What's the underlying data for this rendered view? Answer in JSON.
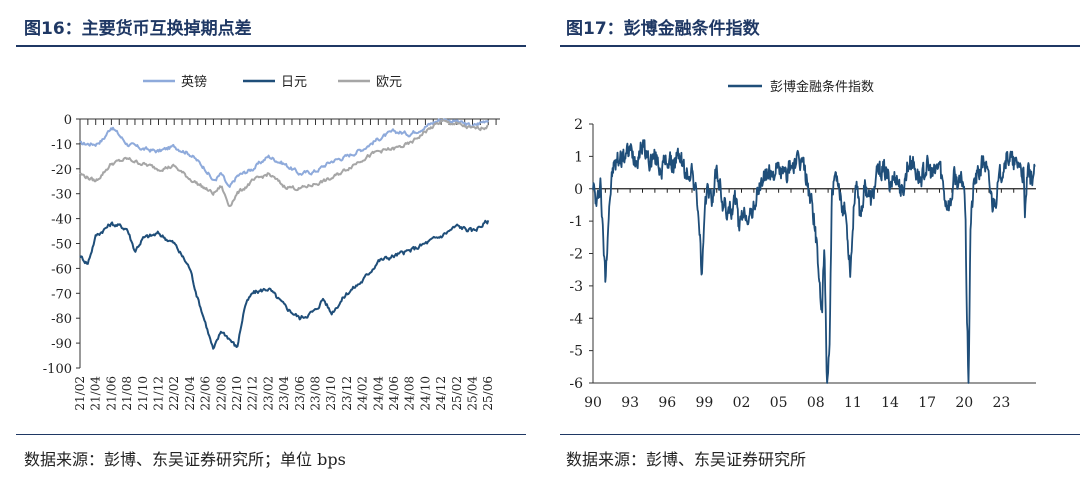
{
  "left": {
    "title": "图16：主要货币互换掉期点差",
    "source": "数据来源：彭博、东吴证券研究所；单位 bps"
  },
  "right": {
    "title": "图17：彭博金融条件指数",
    "source": "数据来源：彭博、东吴证券研究所"
  },
  "chart_data": [
    {
      "type": "line",
      "title": "",
      "xlabel": "",
      "ylabel": "",
      "ylim": [
        -100,
        0
      ],
      "yticks": [
        0,
        -10,
        -20,
        -30,
        -40,
        -50,
        -60,
        -70,
        -80,
        -90,
        -100
      ],
      "ytick_labels": [
        "0",
        "-10",
        "-20",
        "-30",
        "-40",
        "-50",
        "-60",
        "-70",
        "-80",
        "-90",
        "-100"
      ],
      "xticks": [
        "21/02",
        "21/04",
        "21/06",
        "21/08",
        "21/10",
        "21/12",
        "22/02",
        "22/04",
        "22/06",
        "22/08",
        "22/10",
        "22/12",
        "23/02",
        "23/04",
        "23/06",
        "23/08",
        "23/10",
        "23/12",
        "24/02",
        "24/04",
        "24/06",
        "24/08",
        "24/10",
        "24/12",
        "25/02",
        "25/04",
        "25/06"
      ],
      "legend_position": "top-center",
      "grid": false,
      "series": [
        {
          "name": "英镑",
          "color": "#8eaadb",
          "x": [
            "21/02",
            "21/04",
            "21/05",
            "21/06",
            "21/08",
            "21/10",
            "21/12",
            "22/02",
            "22/04",
            "22/06",
            "22/07",
            "22/08",
            "22/09",
            "22/10",
            "22/12",
            "23/02",
            "23/04",
            "23/06",
            "23/08",
            "23/10",
            "23/12",
            "24/02",
            "24/04",
            "24/06",
            "24/08",
            "24/10",
            "24/12",
            "25/02",
            "25/04",
            "25/06"
          ],
          "values": [
            -10,
            -10,
            -8,
            -3,
            -10,
            -12,
            -13,
            -11,
            -14,
            -20,
            -25,
            -22,
            -28,
            -23,
            -20,
            -15,
            -18,
            -22,
            -21,
            -17,
            -15,
            -12,
            -8,
            -5,
            -6,
            -3,
            0,
            -1,
            -3,
            0
          ]
        },
        {
          "name": "日元",
          "color": "#1f4e79",
          "x": [
            "21/02",
            "21/03",
            "21/04",
            "21/06",
            "21/08",
            "21/09",
            "21/10",
            "21/12",
            "22/02",
            "22/03",
            "22/04",
            "22/05",
            "22/06",
            "22/07",
            "22/08",
            "22/09",
            "22/10",
            "22/11",
            "22/12",
            "23/02",
            "23/04",
            "23/06",
            "23/08",
            "23/09",
            "23/10",
            "23/12",
            "24/02",
            "24/04",
            "24/06",
            "24/08",
            "24/10",
            "24/12",
            "25/02",
            "25/04",
            "25/06"
          ],
          "values": [
            -55,
            -58,
            -47,
            -42,
            -44,
            -53,
            -48,
            -46,
            -50,
            -55,
            -60,
            -72,
            -82,
            -93,
            -85,
            -88,
            -92,
            -75,
            -70,
            -68,
            -75,
            -80,
            -77,
            -72,
            -78,
            -70,
            -65,
            -57,
            -55,
            -53,
            -50,
            -47,
            -43,
            -45,
            -41
          ]
        },
        {
          "name": "欧元",
          "color": "#a6a6a6",
          "x": [
            "21/02",
            "21/04",
            "21/06",
            "21/08",
            "21/10",
            "21/12",
            "22/02",
            "22/04",
            "22/06",
            "22/07",
            "22/08",
            "22/09",
            "22/10",
            "22/12",
            "23/02",
            "23/04",
            "23/06",
            "23/08",
            "23/10",
            "23/12",
            "24/02",
            "24/04",
            "24/06",
            "24/08",
            "24/10",
            "24/12",
            "25/02",
            "25/04",
            "25/06"
          ],
          "values": [
            -22,
            -25,
            -18,
            -16,
            -18,
            -20,
            -19,
            -24,
            -28,
            -30,
            -27,
            -35,
            -30,
            -25,
            -22,
            -27,
            -28,
            -26,
            -24,
            -20,
            -16,
            -13,
            -12,
            -10,
            -5,
            -1,
            -2,
            -4,
            -3
          ]
        }
      ]
    },
    {
      "type": "line",
      "title": "",
      "xlabel": "",
      "ylabel": "",
      "ylim": [
        -6,
        2
      ],
      "yticks": [
        2,
        1,
        0,
        -1,
        -2,
        -3,
        -4,
        -5,
        -6
      ],
      "ytick_labels": [
        "2",
        "1",
        "0",
        "-1",
        "-2",
        "-3",
        "-4",
        "-5",
        "-6"
      ],
      "xticks": [
        "90",
        "93",
        "96",
        "99",
        "02",
        "05",
        "08",
        "11",
        "14",
        "17",
        "20",
        "23"
      ],
      "xlim": [
        1990,
        2025.8
      ],
      "legend_position": "top-center",
      "grid": false,
      "series": [
        {
          "name": "彭博金融条件指数",
          "color": "#1f4e79",
          "x": [
            1990.0,
            1990.3,
            1990.6,
            1990.8,
            1991.0,
            1991.3,
            1991.6,
            1992.0,
            1992.5,
            1993.0,
            1993.5,
            1994.0,
            1994.6,
            1995.0,
            1995.5,
            1996.0,
            1996.5,
            1997.0,
            1997.5,
            1998.0,
            1998.5,
            1998.8,
            1999.2,
            1999.6,
            2000.0,
            2000.5,
            2001.0,
            2001.5,
            2001.8,
            2002.3,
            2002.7,
            2003.2,
            2003.8,
            2004.5,
            2005.0,
            2005.5,
            2006.0,
            2006.5,
            2007.0,
            2007.3,
            2007.6,
            2007.9,
            2008.2,
            2008.5,
            2008.7,
            2008.9,
            2009.1,
            2009.3,
            2009.6,
            2010.0,
            2010.4,
            2010.8,
            2011.2,
            2011.6,
            2012.0,
            2012.5,
            2013.0,
            2013.5,
            2014.0,
            2014.5,
            2015.0,
            2015.4,
            2015.8,
            2016.1,
            2016.5,
            2017.0,
            2017.5,
            2018.0,
            2018.5,
            2018.9,
            2019.2,
            2019.6,
            2019.9,
            2020.1,
            2020.2,
            2020.35,
            2020.5,
            2020.8,
            2021.2,
            2021.6,
            2022.0,
            2022.3,
            2022.6,
            2022.9,
            2023.3,
            2023.7,
            2024.0,
            2024.4,
            2024.8,
            2024.9,
            2025.1,
            2025.4,
            2025.7
          ],
          "values": [
            0.2,
            -0.6,
            0.3,
            -1.4,
            -2.8,
            -0.5,
            0.6,
            0.9,
            1.0,
            1.2,
            0.9,
            1.4,
            0.8,
            1.0,
            0.6,
            0.9,
            0.7,
            1.1,
            0.4,
            0.6,
            -0.6,
            -2.7,
            0.2,
            -0.4,
            0.6,
            -0.5,
            -0.8,
            -0.3,
            -1.2,
            -0.7,
            -0.9,
            -0.3,
            0.4,
            0.5,
            0.6,
            0.4,
            0.7,
            0.8,
            0.8,
            0.2,
            -0.3,
            -1.0,
            -2.3,
            -4.0,
            -1.8,
            -6.0,
            -5.0,
            -0.3,
            0.3,
            -0.3,
            -0.7,
            -2.5,
            0.2,
            -0.8,
            0.1,
            -0.4,
            0.5,
            0.6,
            0.2,
            0.4,
            -0.2,
            0.7,
            0.9,
            0.5,
            0.3,
            0.7,
            0.4,
            0.8,
            -0.4,
            -0.5,
            0.4,
            0.1,
            0.3,
            -0.5,
            -3.5,
            -6.0,
            -1.2,
            0.2,
            0.5,
            0.9,
            0.2,
            -0.5,
            -0.2,
            0.4,
            0.9,
            1.0,
            0.7,
            0.8,
            0.4,
            -1.1,
            0.5,
            0.3,
            0.5
          ]
        }
      ]
    }
  ]
}
